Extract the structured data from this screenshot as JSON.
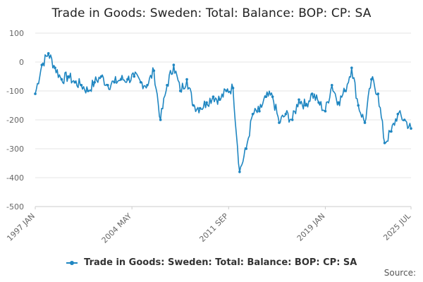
{
  "title": "Trade in Goods: Sweden: Total: Balance: BOP: CP: SA",
  "legend_label": "Trade in Goods: Sweden: Total: Balance: BOP: CP: SA",
  "source_label": "Source:",
  "colors": {
    "series": "#1f86c1",
    "grid": "#e6e6e6",
    "axis_text": "#666666"
  },
  "chart_data": {
    "type": "line",
    "title": "Trade in Goods: Sweden: Total: Balance: BOP: CP: SA",
    "xlabel": "",
    "ylabel": "",
    "ylim": [
      -500,
      100
    ],
    "y_ticks": [
      100,
      0,
      -100,
      -200,
      -300,
      -400,
      -500
    ],
    "x_tick_labels": [
      "1997 JAN",
      "2004 MAY",
      "2011 SEP",
      "2019 JAN",
      "2025 JUL"
    ],
    "x_range": [
      "1997 JAN",
      "2025 JUL"
    ],
    "grid": true,
    "legend_position": "bottom",
    "series": [
      {
        "name": "Trade in Goods: Sweden: Total: Balance: BOP: CP: SA",
        "x": [
          "1997-01",
          "1997-07",
          "1998-01",
          "1998-07",
          "1999-01",
          "1999-07",
          "2000-01",
          "2000-07",
          "2001-01",
          "2001-07",
          "2002-01",
          "2002-07",
          "2003-01",
          "2003-07",
          "2004-01",
          "2004-07",
          "2005-01",
          "2005-07",
          "2006-01",
          "2006-07",
          "2007-01",
          "2007-07",
          "2008-01",
          "2008-07",
          "2009-01",
          "2009-07",
          "2010-01",
          "2010-07",
          "2011-01",
          "2011-07",
          "2012-01",
          "2012-07",
          "2013-01",
          "2013-07",
          "2014-01",
          "2014-07",
          "2015-01",
          "2015-07",
          "2016-01",
          "2016-07",
          "2017-01",
          "2017-07",
          "2018-01",
          "2018-07",
          "2019-01",
          "2019-07",
          "2020-01",
          "2020-07",
          "2021-01",
          "2021-07",
          "2022-01",
          "2022-07",
          "2023-01",
          "2023-07",
          "2024-01",
          "2024-07",
          "2025-01",
          "2025-07"
        ],
        "values": [
          -110,
          -10,
          30,
          -20,
          -60,
          -50,
          -70,
          -80,
          -100,
          -70,
          -50,
          -80,
          -70,
          -60,
          -60,
          -50,
          -70,
          -80,
          -30,
          -200,
          -80,
          -10,
          -100,
          -60,
          -150,
          -160,
          -140,
          -120,
          -130,
          -100,
          -90,
          -380,
          -300,
          -180,
          -170,
          -120,
          -120,
          -210,
          -180,
          -200,
          -130,
          -150,
          -110,
          -140,
          -170,
          -80,
          -140,
          -100,
          -20,
          -150,
          -210,
          -60,
          -110,
          -280,
          -240,
          -180,
          -200,
          -230
        ]
      }
    ]
  }
}
